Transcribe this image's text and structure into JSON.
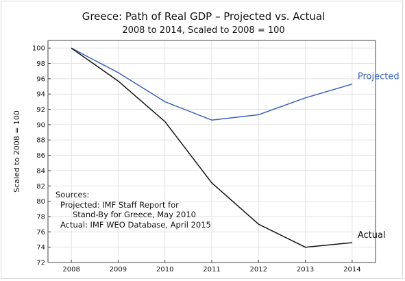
{
  "chart_data": {
    "type": "line",
    "title": "Greece:  Path of Real GDP – Projected vs. Actual",
    "subtitle": "2008 to 2014, Scaled to 2008 = 100",
    "xlabel": "",
    "ylabel": "Scaled to 2008 = 100",
    "x": [
      2008,
      2009,
      2010,
      2011,
      2012,
      2013,
      2014
    ],
    "xlim": [
      2007.5,
      2014.5
    ],
    "ylim": [
      72,
      101
    ],
    "yticks": [
      72,
      74,
      76,
      78,
      80,
      82,
      84,
      86,
      88,
      90,
      92,
      94,
      96,
      98,
      100
    ],
    "grid": true,
    "series": [
      {
        "name": "Projected",
        "color": "#3a62b8",
        "values": [
          100,
          96.8,
          93.0,
          90.6,
          91.3,
          93.5,
          95.3
        ]
      },
      {
        "name": "Actual",
        "color": "#111111",
        "values": [
          100,
          95.7,
          90.4,
          82.4,
          77.0,
          74.0,
          74.6
        ]
      }
    ],
    "annotation": [
      "Sources:",
      "Projected:  IMF Staff Report for",
      "Stand-By for Greece, May 2010",
      "Actual:  IMF WEO Database, April 2015"
    ]
  }
}
